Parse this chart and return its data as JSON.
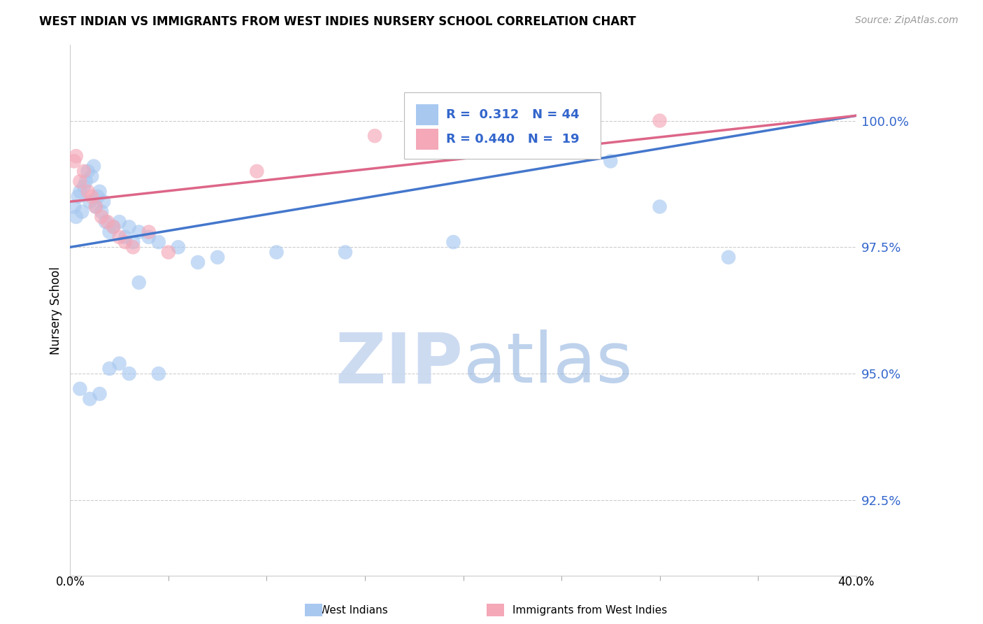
{
  "title": "WEST INDIAN VS IMMIGRANTS FROM WEST INDIES NURSERY SCHOOL CORRELATION CHART",
  "source": "Source: ZipAtlas.com",
  "ylabel": "Nursery School",
  "y_tick_labels": [
    "92.5%",
    "95.0%",
    "97.5%",
    "100.0%"
  ],
  "y_tick_values": [
    92.5,
    95.0,
    97.5,
    100.0
  ],
  "x_range": [
    0.0,
    40.0
  ],
  "y_range": [
    91.0,
    101.5
  ],
  "blue_color": "#A8C8F0",
  "pink_color": "#F4A8B8",
  "blue_line_color": "#4477CC",
  "pink_line_color": "#DD6688",
  "blue_scatter_x": [
    0.2,
    0.3,
    0.4,
    0.5,
    0.6,
    0.7,
    0.8,
    0.9,
    1.0,
    1.1,
    1.2,
    1.3,
    1.4,
    1.5,
    1.6,
    1.7,
    1.8,
    2.0,
    2.2,
    2.5,
    2.8,
    3.0,
    3.2,
    3.5,
    4.0,
    4.5,
    5.5,
    7.5,
    10.5,
    14.0,
    19.5,
    24.5,
    27.5,
    30.0,
    33.5
  ],
  "blue_scatter_y": [
    98.3,
    98.1,
    98.5,
    98.6,
    98.2,
    98.7,
    98.8,
    99.0,
    98.4,
    98.9,
    99.1,
    98.3,
    98.5,
    98.6,
    98.2,
    98.4,
    98.0,
    97.8,
    97.9,
    98.0,
    97.7,
    97.9,
    97.6,
    97.8,
    97.7,
    97.6,
    97.5,
    97.3,
    97.4,
    97.4,
    97.6,
    99.8,
    99.2,
    98.3,
    97.3
  ],
  "blue_scatter_x2": [
    0.5,
    1.0,
    1.5,
    2.0,
    2.5,
    3.0,
    3.5,
    4.5,
    6.5
  ],
  "blue_scatter_y2": [
    94.7,
    94.5,
    94.6,
    95.1,
    95.2,
    95.0,
    96.8,
    95.0,
    97.2
  ],
  "pink_scatter_x": [
    0.2,
    0.3,
    0.5,
    0.7,
    0.9,
    1.1,
    1.3,
    1.6,
    1.9,
    2.2,
    2.5,
    2.8,
    3.2,
    4.0,
    5.0,
    9.5,
    15.5,
    26.5,
    30.0
  ],
  "pink_scatter_y": [
    99.2,
    99.3,
    98.8,
    99.0,
    98.6,
    98.5,
    98.3,
    98.1,
    98.0,
    97.9,
    97.7,
    97.6,
    97.5,
    97.8,
    97.4,
    99.0,
    99.7,
    99.9,
    100.0
  ],
  "blue_trendline_x": [
    0.0,
    40.0
  ],
  "blue_trendline_y": [
    97.5,
    100.1
  ],
  "pink_trendline_x": [
    0.0,
    40.0
  ],
  "pink_trendline_y": [
    98.4,
    100.1
  ],
  "legend_blue_text": "R =  0.312   N = 44",
  "legend_pink_text": "R = 0.440   N =  19"
}
